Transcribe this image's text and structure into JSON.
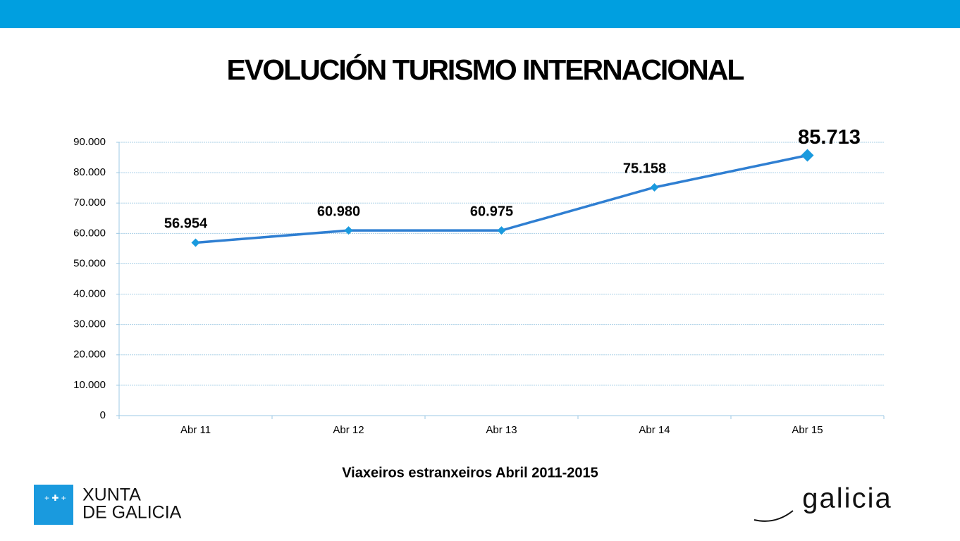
{
  "chart_data": {
    "type": "line",
    "title": "EVOLUCIÓN TURISMO INTERNACIONAL",
    "x_label": "Viaxeiros estranxeiros Abril 2011-2015",
    "categories": [
      "Abr 11",
      "Abr 12",
      "Abr 13",
      "Abr 14",
      "Abr 15"
    ],
    "values": [
      56954,
      60980,
      60975,
      75158,
      85713
    ],
    "value_labels": [
      "56.954",
      "60.980",
      "60.975",
      "75.158",
      "85.713"
    ],
    "color": "#2f7fd2",
    "marker_color": "#1a9ade",
    "ylim": [
      0,
      90000
    ],
    "yticks": [
      0,
      {
        "value": 10000,
        "label": "10.000"
      },
      {
        "value": 20000,
        "label": "20.000"
      },
      {
        "value": 30000,
        "label": "30.000"
      },
      {
        "value": 40000,
        "label": "40.000"
      },
      {
        "value": 50000,
        "label": "50.000"
      },
      {
        "value": 60000,
        "label": "60.000"
      },
      {
        "value": 70000,
        "label": "70.000"
      },
      {
        "value": 80000,
        "label": "80.000"
      },
      {
        "value": 90000,
        "label": "90.000"
      }
    ],
    "grid": true
  },
  "footer": {
    "logo_left": [
      "XUNTA",
      "DE GALICIA"
    ],
    "logo_right": "galicia"
  }
}
